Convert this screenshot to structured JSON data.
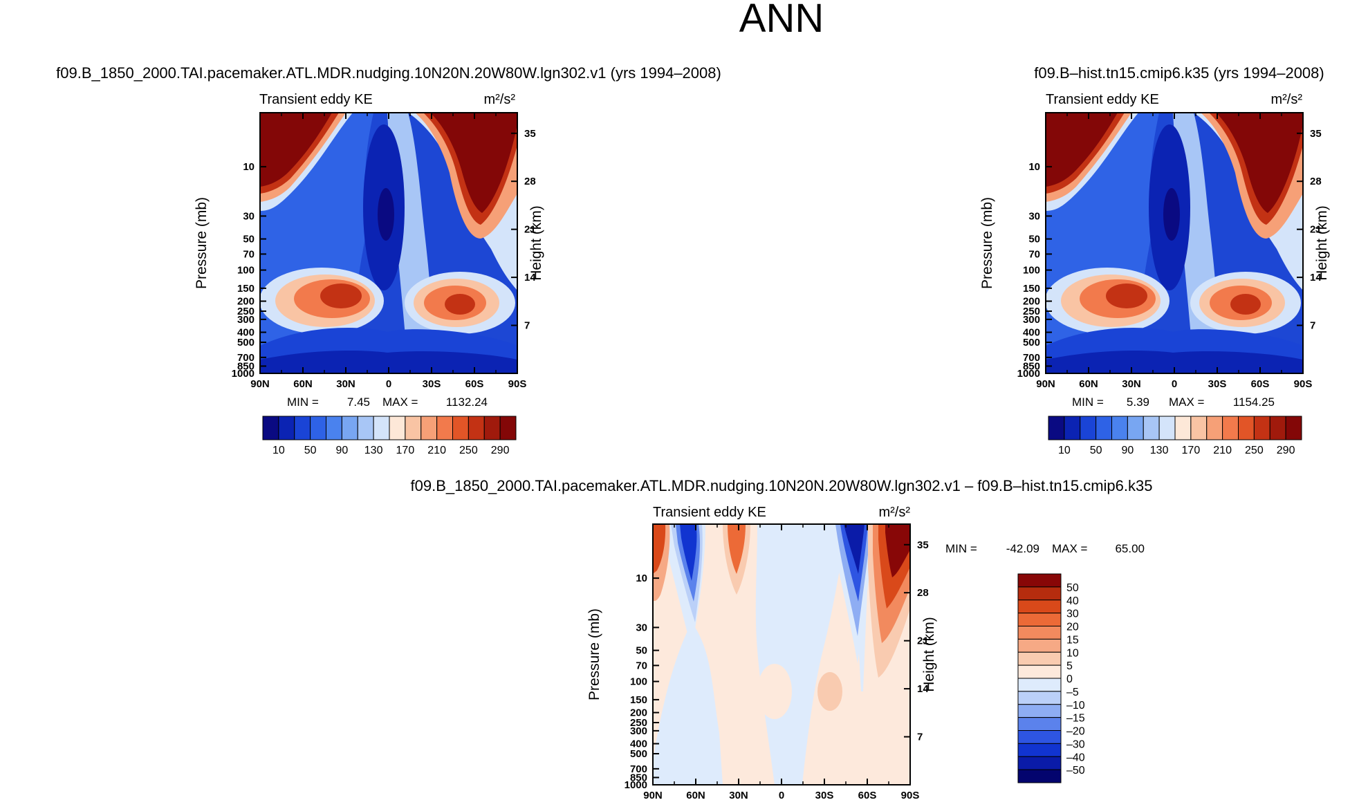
{
  "figure": {
    "suptitle": "ANN",
    "colors": {
      "abs": [
        "#0a0a82",
        "#0b23b3",
        "#1a44d6",
        "#2e62e6",
        "#4a82ee",
        "#78a6f2",
        "#a8c6f6",
        "#d4e4fa",
        "#fde8d8",
        "#f9c4a4",
        "#f6a077",
        "#f27a4c",
        "#e25527",
        "#c33214",
        "#a01a0c",
        "#830707"
      ],
      "diff": [
        "#03046e",
        "#0a1ba8",
        "#1134d0",
        "#2e55e2",
        "#5b82ec",
        "#8eadf3",
        "#bbd0f8",
        "#deebfc",
        "#fde9dc",
        "#f9cbb0",
        "#f6a985",
        "#f28a5e",
        "#ec6a37",
        "#d9491a",
        "#b52c0e",
        "#880707"
      ]
    }
  },
  "chart_data": [
    {
      "id": "case",
      "type": "contour",
      "title": "f09.B_1850_2000.TAI.pacemaker.ATL.MDR.nudging.10N20N.20W80W.lgn302.v1 (yrs 1994–2008)",
      "left_label": "Transient eddy KE",
      "right_label": "m²/s²",
      "xlabel": "",
      "ylabel": "Pressure (mb)",
      "y2label": "Height (km)",
      "x_ticks": [
        "90N",
        "60N",
        "30N",
        "0",
        "30S",
        "60S",
        "90S"
      ],
      "x_values": [
        90,
        60,
        30,
        0,
        -30,
        -60,
        -90
      ],
      "y_ticks": [
        "10",
        "30",
        "50",
        "70",
        "100",
        "150",
        "200",
        "250",
        "300",
        "400",
        "500",
        "700",
        "850",
        "1000"
      ],
      "y_values": [
        10,
        30,
        50,
        70,
        100,
        150,
        200,
        250,
        300,
        400,
        500,
        700,
        850,
        1000
      ],
      "ylim_mb": [
        3,
        1000
      ],
      "height_ticks": [
        "35",
        "28",
        "21",
        "14",
        "7"
      ],
      "height_values": [
        35,
        28,
        21,
        14,
        7
      ],
      "min_label": "MIN =",
      "min_value": "7.45",
      "max_label": "MAX =",
      "max_value": "1132.24",
      "colorbar_levels": [
        "10",
        "30",
        "50",
        "70",
        "90",
        "110",
        "130",
        "150",
        "170",
        "190",
        "210",
        "230",
        "250",
        "270",
        "290"
      ],
      "colorbar_labels": [
        "10",
        "50",
        "90",
        "130",
        "170",
        "210",
        "250",
        "290"
      ]
    },
    {
      "id": "control",
      "type": "contour",
      "title": "f09.B–hist.tn15.cmip6.k35 (yrs 1994–2008)",
      "left_label": "Transient eddy KE",
      "right_label": "m²/s²",
      "xlabel": "",
      "ylabel": "Pressure (mb)",
      "y2label": "Height (km)",
      "x_ticks": [
        "90N",
        "60N",
        "30N",
        "0",
        "30S",
        "60S",
        "90S"
      ],
      "x_values": [
        90,
        60,
        30,
        0,
        -30,
        -60,
        -90
      ],
      "y_ticks": [
        "10",
        "30",
        "50",
        "70",
        "100",
        "150",
        "200",
        "250",
        "300",
        "400",
        "500",
        "700",
        "850",
        "1000"
      ],
      "y_values": [
        10,
        30,
        50,
        70,
        100,
        150,
        200,
        250,
        300,
        400,
        500,
        700,
        850,
        1000
      ],
      "ylim_mb": [
        3,
        1000
      ],
      "height_ticks": [
        "35",
        "28",
        "21",
        "14",
        "7"
      ],
      "height_values": [
        35,
        28,
        21,
        14,
        7
      ],
      "min_label": "MIN =",
      "min_value": "5.39",
      "max_label": "MAX =",
      "max_value": "1154.25",
      "colorbar_levels": [
        "10",
        "30",
        "50",
        "70",
        "90",
        "110",
        "130",
        "150",
        "170",
        "190",
        "210",
        "230",
        "250",
        "270",
        "290"
      ],
      "colorbar_labels": [
        "10",
        "50",
        "90",
        "130",
        "170",
        "210",
        "250",
        "290"
      ]
    },
    {
      "id": "difference",
      "type": "contour",
      "title": "f09.B_1850_2000.TAI.pacemaker.ATL.MDR.nudging.10N20N.20W80W.lgn302.v1 – f09.B–hist.tn15.cmip6.k35",
      "left_label": "Transient eddy KE",
      "right_label": "m²/s²",
      "xlabel": "",
      "ylabel": "Pressure (mb)",
      "y2label": "Height (km)",
      "x_ticks": [
        "90N",
        "60N",
        "30N",
        "0",
        "30S",
        "60S",
        "90S"
      ],
      "x_values": [
        90,
        60,
        30,
        0,
        -30,
        -60,
        -90
      ],
      "y_ticks": [
        "10",
        "30",
        "50",
        "70",
        "100",
        "150",
        "200",
        "250",
        "300",
        "400",
        "500",
        "700",
        "850",
        "1000"
      ],
      "y_values": [
        10,
        30,
        50,
        70,
        100,
        150,
        200,
        250,
        300,
        400,
        500,
        700,
        850,
        1000
      ],
      "ylim_mb": [
        3,
        1000
      ],
      "height_ticks": [
        "35",
        "28",
        "21",
        "14",
        "7"
      ],
      "height_values": [
        35,
        28,
        21,
        14,
        7
      ],
      "min_label": "MIN =",
      "min_value": "-42.09",
      "max_label": "MAX =",
      "max_value": "65.00",
      "colorbar_levels": [
        "50",
        "40",
        "30",
        "20",
        "15",
        "10",
        "5",
        "0",
        "–5",
        "–10",
        "–15",
        "–20",
        "–30",
        "–40",
        "–50"
      ],
      "colorbar_labels": [
        "50",
        "40",
        "30",
        "20",
        "15",
        "10",
        "5",
        "0",
        "–5",
        "–10",
        "–15",
        "–20",
        "–30",
        "–40",
        "–50"
      ]
    }
  ]
}
